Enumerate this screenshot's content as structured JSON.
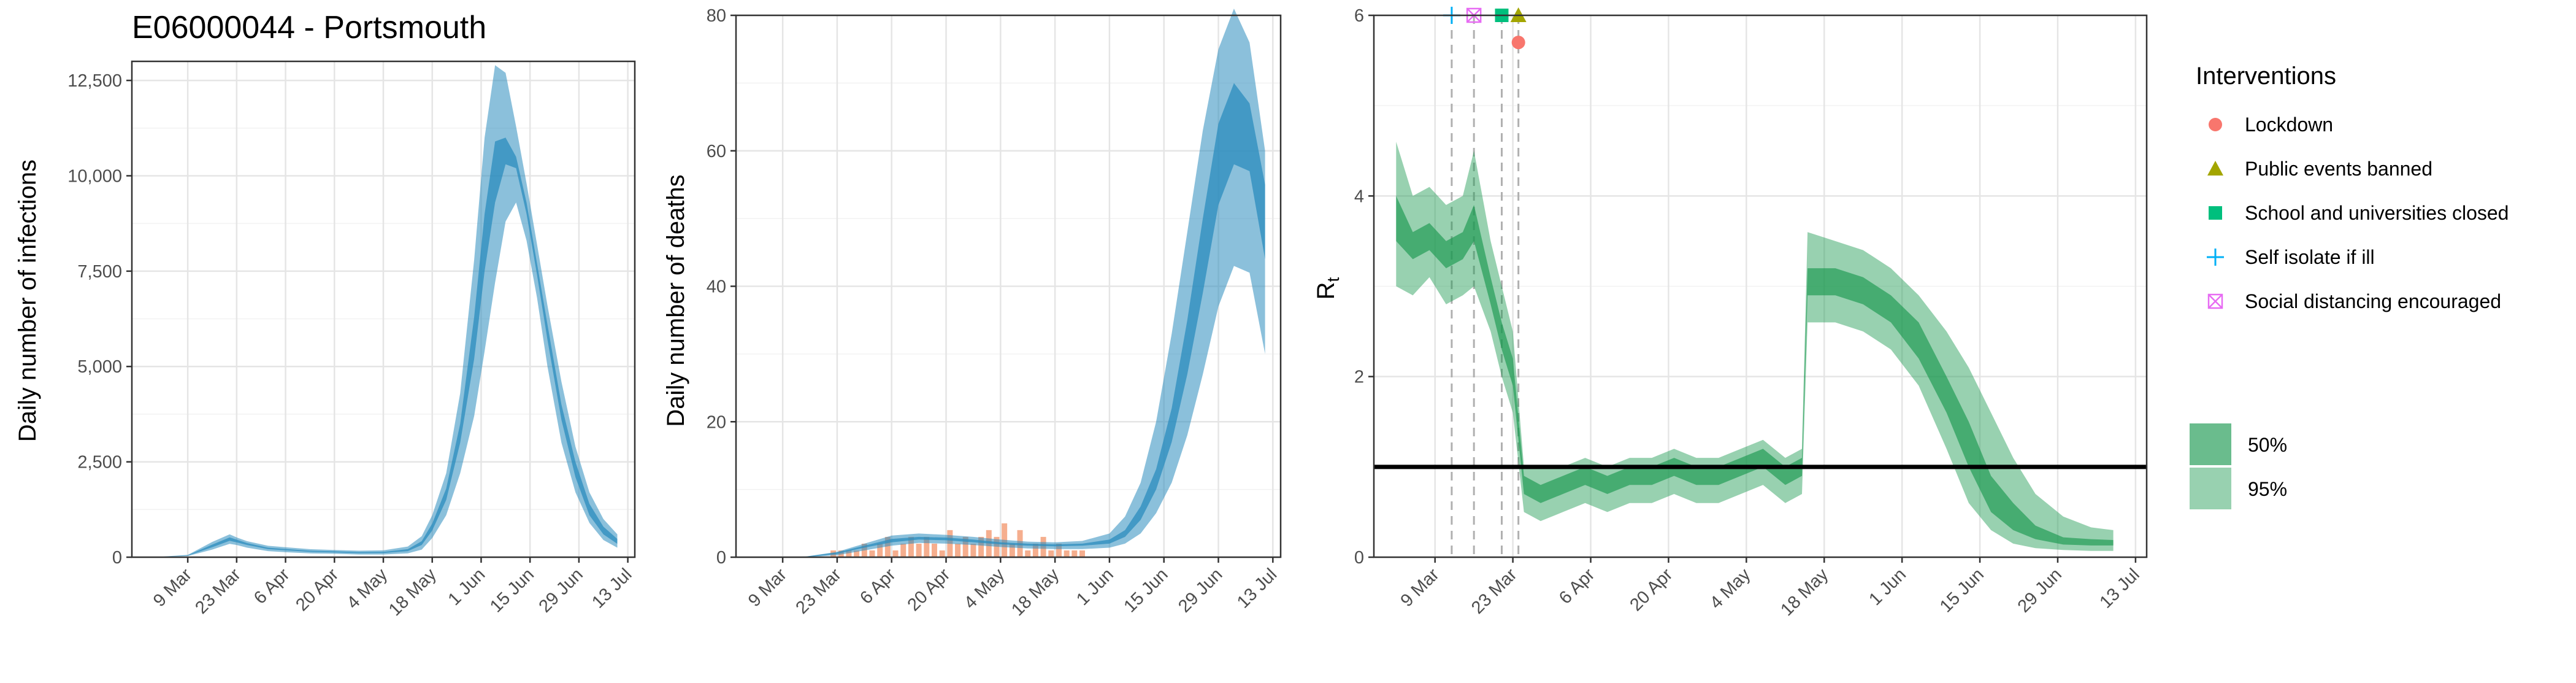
{
  "colors": {
    "infections_fill": "#2b8cbe",
    "infections_line": "#1b6f8f",
    "deaths_bar": "#f4a582",
    "rt_fill": "#1a9850",
    "threshold_line": "#000000",
    "lockdown": "#f8766d",
    "public_events": "#a3a500",
    "schools": "#00bf7d",
    "self_isolate": "#00b0f6",
    "social_distancing": "#e76bf3"
  },
  "legend": {
    "interventions_title": "Interventions",
    "items": [
      {
        "label": "Lockdown",
        "icon": "circle-icon"
      },
      {
        "label": "Public events banned",
        "icon": "triangle-icon"
      },
      {
        "label": "School and universities closed",
        "icon": "square-icon"
      },
      {
        "label": "Self isolate if ill",
        "icon": "plus-icon"
      },
      {
        "label": "Social distancing encouraged",
        "icon": "boxed-x-icon"
      }
    ],
    "ci_items": [
      {
        "label": "50%"
      },
      {
        "label": "95%"
      }
    ]
  },
  "chart_data": [
    {
      "type": "area",
      "title": "E06000044 - Portsmouth",
      "xlabel": "",
      "ylabel": "Daily number of infections",
      "ylim": [
        0,
        13000
      ],
      "yticks": [
        0,
        2500,
        5000,
        7500,
        10000,
        12500
      ],
      "ytick_labels": [
        "0",
        "2,500",
        "5,000",
        "7,500",
        "10,000",
        "12,500"
      ],
      "xlim": [
        "2020-02-22",
        "2020-07-15"
      ],
      "xticks": [
        "2020-03-09",
        "2020-03-23",
        "2020-04-06",
        "2020-04-20",
        "2020-05-04",
        "2020-05-18",
        "2020-06-01",
        "2020-06-15",
        "2020-06-29",
        "2020-07-13"
      ],
      "xtick_labels": [
        "9 Mar",
        "23 Mar",
        "6 Apr",
        "20 Apr",
        "4 May",
        "18 May",
        "1 Jun",
        "15 Jun",
        "29 Jun",
        "13 Jul"
      ],
      "grid": true,
      "x": [
        "2020-02-28",
        "2020-03-09",
        "2020-03-16",
        "2020-03-21",
        "2020-03-23",
        "2020-03-26",
        "2020-04-01",
        "2020-04-06",
        "2020-04-13",
        "2020-04-20",
        "2020-04-27",
        "2020-05-04",
        "2020-05-11",
        "2020-05-15",
        "2020-05-18",
        "2020-05-22",
        "2020-05-26",
        "2020-05-30",
        "2020-06-02",
        "2020-06-05",
        "2020-06-08",
        "2020-06-11",
        "2020-06-14",
        "2020-06-17",
        "2020-06-20",
        "2020-06-24",
        "2020-06-28",
        "2020-07-02",
        "2020-07-06",
        "2020-07-10"
      ],
      "series": [
        {
          "band": "95%",
          "low": [
            0,
            30,
            200,
            350,
            320,
            250,
            160,
            130,
            100,
            90,
            70,
            70,
            100,
            200,
            500,
            1100,
            2200,
            3700,
            5400,
            7200,
            8800,
            9300,
            8300,
            6800,
            5000,
            3000,
            1700,
            900,
            450,
            250
          ],
          "high": [
            0,
            60,
            400,
            600,
            520,
            420,
            300,
            260,
            210,
            190,
            170,
            180,
            280,
            550,
            1100,
            2200,
            4300,
            7800,
            11000,
            12900,
            12700,
            11300,
            9800,
            8200,
            6600,
            4600,
            2900,
            1700,
            1000,
            600
          ]
        },
        {
          "band": "50%",
          "low": [
            0,
            40,
            260,
            430,
            390,
            320,
            210,
            180,
            140,
            125,
            105,
            110,
            160,
            320,
            700,
            1500,
            3000,
            5200,
            7500,
            9300,
            10300,
            10200,
            9000,
            7400,
            5700,
            3600,
            2100,
            1100,
            600,
            350
          ],
          "high": [
            0,
            50,
            330,
            520,
            460,
            370,
            250,
            215,
            170,
            155,
            135,
            140,
            210,
            420,
            880,
            1800,
            3500,
            6300,
            9000,
            10900,
            11000,
            10500,
            9300,
            7700,
            6100,
            4000,
            2500,
            1400,
            800,
            480
          ]
        }
      ]
    },
    {
      "type": "area",
      "title": "",
      "xlabel": "",
      "ylabel": "Daily number of deaths",
      "ylim": [
        0,
        80
      ],
      "yticks": [
        0,
        20,
        40,
        60,
        80
      ],
      "ytick_labels": [
        "0",
        "20",
        "40",
        "60",
        "80"
      ],
      "xlim": [
        "2020-02-26",
        "2020-07-15"
      ],
      "xticks": [
        "2020-03-09",
        "2020-03-23",
        "2020-04-06",
        "2020-04-20",
        "2020-05-04",
        "2020-05-18",
        "2020-06-01",
        "2020-06-15",
        "2020-06-29",
        "2020-07-13"
      ],
      "xtick_labels": [
        "9 Mar",
        "23 Mar",
        "6 Apr",
        "20 Apr",
        "4 May",
        "18 May",
        "1 Jun",
        "15 Jun",
        "29 Jun",
        "13 Jul"
      ],
      "grid": true,
      "x": [
        "2020-03-01",
        "2020-03-15",
        "2020-03-23",
        "2020-03-30",
        "2020-04-06",
        "2020-04-13",
        "2020-04-20",
        "2020-04-27",
        "2020-05-04",
        "2020-05-11",
        "2020-05-18",
        "2020-05-25",
        "2020-06-01",
        "2020-06-05",
        "2020-06-09",
        "2020-06-13",
        "2020-06-17",
        "2020-06-21",
        "2020-06-25",
        "2020-06-29",
        "2020-07-03",
        "2020-07-07",
        "2020-07-11"
      ],
      "series": [
        {
          "band": "95%",
          "low": [
            0,
            0,
            0.3,
            1.0,
            1.7,
            2.1,
            2.0,
            1.8,
            1.5,
            1.3,
            1.2,
            1.2,
            1.4,
            2.0,
            3.5,
            6.5,
            11,
            18,
            27,
            37,
            43,
            42,
            30
          ],
          "high": [
            0,
            0.1,
            0.8,
            2.0,
            3.2,
            3.5,
            3.3,
            3.0,
            2.6,
            2.3,
            2.2,
            2.4,
            3.5,
            6,
            11,
            20,
            33,
            48,
            63,
            75,
            81,
            76,
            60
          ]
        },
        {
          "band": "50%",
          "low": [
            0,
            0,
            0.5,
            1.4,
            2.2,
            2.6,
            2.5,
            2.2,
            1.9,
            1.7,
            1.6,
            1.7,
            2.0,
            3.0,
            5.5,
            10,
            17,
            27,
            39,
            52,
            58,
            57,
            44
          ],
          "high": [
            0,
            0.1,
            0.7,
            1.7,
            2.7,
            3.0,
            2.9,
            2.6,
            2.2,
            2.0,
            1.9,
            2.0,
            2.6,
            4.0,
            7.5,
            13,
            22,
            35,
            50,
            64,
            70,
            67,
            55
          ]
        }
      ],
      "observed": {
        "x": [
          "2020-03-22",
          "2020-03-24",
          "2020-03-26",
          "2020-03-28",
          "2020-03-30",
          "2020-04-01",
          "2020-04-03",
          "2020-04-05",
          "2020-04-07",
          "2020-04-09",
          "2020-04-11",
          "2020-04-13",
          "2020-04-15",
          "2020-04-17",
          "2020-04-19",
          "2020-04-21",
          "2020-04-23",
          "2020-04-25",
          "2020-04-27",
          "2020-04-29",
          "2020-05-01",
          "2020-05-03",
          "2020-05-05",
          "2020-05-07",
          "2020-05-09",
          "2020-05-11",
          "2020-05-13",
          "2020-05-15",
          "2020-05-17",
          "2020-05-19",
          "2020-05-21",
          "2020-05-23",
          "2020-05-25"
        ],
        "values": [
          1,
          1,
          1,
          1,
          2,
          1,
          2,
          3,
          1,
          2,
          3,
          2,
          3,
          2,
          1,
          4,
          2,
          3,
          2,
          3,
          4,
          3,
          5,
          2,
          4,
          1,
          2,
          3,
          1,
          2,
          1,
          1,
          1
        ]
      }
    },
    {
      "type": "area",
      "title": "",
      "xlabel": "",
      "ylabel": "Rt",
      "ylim": [
        0,
        6
      ],
      "yticks": [
        0,
        2,
        4,
        6
      ],
      "ytick_labels": [
        "0",
        "2",
        "4",
        "6"
      ],
      "xlim": [
        "2020-02-27",
        "2020-07-15"
      ],
      "xticks": [
        "2020-03-09",
        "2020-03-23",
        "2020-04-06",
        "2020-04-20",
        "2020-05-04",
        "2020-05-18",
        "2020-06-01",
        "2020-06-15",
        "2020-06-29",
        "2020-07-13"
      ],
      "xtick_labels": [
        "9 Mar",
        "23 Mar",
        "6 Apr",
        "20 Apr",
        "4 May",
        "18 May",
        "1 Jun",
        "15 Jun",
        "29 Jun",
        "13 Jul"
      ],
      "grid": true,
      "threshold": 1,
      "x": [
        "2020-03-02",
        "2020-03-05",
        "2020-03-08",
        "2020-03-11",
        "2020-03-14",
        "2020-03-16",
        "2020-03-19",
        "2020-03-21",
        "2020-03-23",
        "2020-03-25",
        "2020-03-28",
        "2020-04-01",
        "2020-04-05",
        "2020-04-09",
        "2020-04-13",
        "2020-04-17",
        "2020-04-21",
        "2020-04-25",
        "2020-04-29",
        "2020-05-03",
        "2020-05-07",
        "2020-05-11",
        "2020-05-14",
        "2020-05-15",
        "2020-05-20",
        "2020-05-25",
        "2020-05-30",
        "2020-06-04",
        "2020-06-09",
        "2020-06-13",
        "2020-06-17",
        "2020-06-21",
        "2020-06-25",
        "2020-06-30",
        "2020-07-05",
        "2020-07-09"
      ],
      "series": [
        {
          "band": "95%",
          "low": [
            3.0,
            2.9,
            3.1,
            2.8,
            2.9,
            3.0,
            2.5,
            2.0,
            1.6,
            0.5,
            0.4,
            0.5,
            0.6,
            0.5,
            0.6,
            0.6,
            0.7,
            0.6,
            0.6,
            0.7,
            0.8,
            0.6,
            0.7,
            2.6,
            2.6,
            2.5,
            2.3,
            1.9,
            1.2,
            0.6,
            0.3,
            0.15,
            0.1,
            0.08,
            0.07,
            0.07
          ],
          "high": [
            4.6,
            4.0,
            4.1,
            3.9,
            4.0,
            4.5,
            3.5,
            3.0,
            2.5,
            1.0,
            1.0,
            1.0,
            1.1,
            1.0,
            1.1,
            1.1,
            1.2,
            1.1,
            1.1,
            1.2,
            1.3,
            1.1,
            1.2,
            3.6,
            3.5,
            3.4,
            3.2,
            2.9,
            2.5,
            2.1,
            1.6,
            1.1,
            0.7,
            0.45,
            0.33,
            0.3
          ]
        },
        {
          "band": "50%",
          "low": [
            3.5,
            3.3,
            3.4,
            3.2,
            3.3,
            3.5,
            2.8,
            2.3,
            1.9,
            0.7,
            0.6,
            0.7,
            0.8,
            0.7,
            0.8,
            0.8,
            0.9,
            0.8,
            0.8,
            0.9,
            1.0,
            0.8,
            0.9,
            2.9,
            2.9,
            2.8,
            2.6,
            2.2,
            1.6,
            1.0,
            0.5,
            0.3,
            0.2,
            0.14,
            0.13,
            0.13
          ],
          "high": [
            4.0,
            3.6,
            3.7,
            3.5,
            3.6,
            3.9,
            3.1,
            2.6,
            2.2,
            0.9,
            0.8,
            0.9,
            1.0,
            0.9,
            1.0,
            1.0,
            1.1,
            1.0,
            1.0,
            1.1,
            1.2,
            1.0,
            1.1,
            3.2,
            3.2,
            3.1,
            2.9,
            2.6,
            2.0,
            1.5,
            0.9,
            0.6,
            0.35,
            0.22,
            0.2,
            0.19
          ]
        }
      ],
      "interventions": [
        {
          "name": "Self isolate if ill",
          "date": "2020-03-12",
          "symbol": "plus",
          "y": 6.0
        },
        {
          "name": "Social distancing encouraged",
          "date": "2020-03-16",
          "symbol": "boxed-x",
          "y": 6.0
        },
        {
          "name": "School and universities closed",
          "date": "2020-03-21",
          "symbol": "square",
          "y": 6.0
        },
        {
          "name": "Public events banned",
          "date": "2020-03-24",
          "symbol": "triangle",
          "y": 6.0
        },
        {
          "name": "Lockdown",
          "date": "2020-03-24",
          "symbol": "circle",
          "y": 5.7
        }
      ]
    }
  ]
}
